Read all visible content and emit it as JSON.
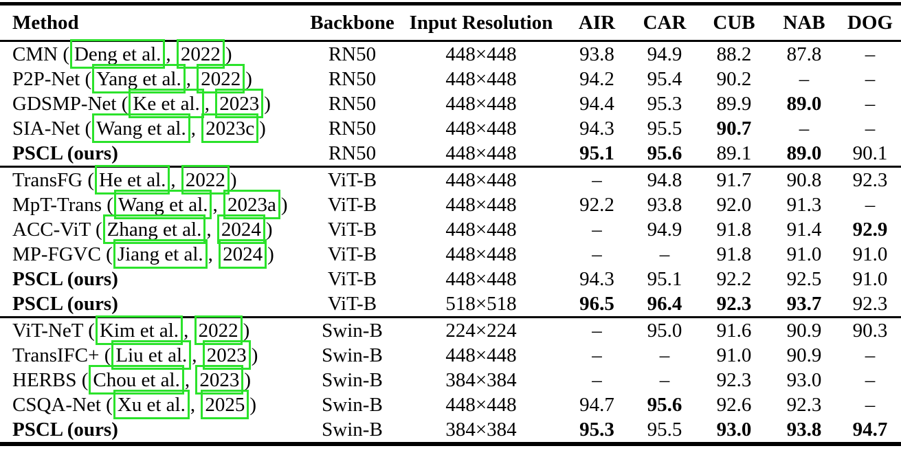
{
  "colors": {
    "citation_box": "#2be22b",
    "text": "#000000",
    "background": "#ffffff"
  },
  "table": {
    "columns": [
      "Method",
      "Backbone",
      "Input Resolution",
      "AIR",
      "CAR",
      "CUB",
      "NAB",
      "DOG"
    ],
    "groups": [
      {
        "rows": [
          {
            "method": {
              "bold": false,
              "parts": [
                {
                  "t": "CMN ("
                },
                {
                  "t": "Deng et al.",
                  "box": true
                },
                {
                  "t": ", "
                },
                {
                  "t": "2022",
                  "box": true
                },
                {
                  "t": ")"
                }
              ]
            },
            "backbone": "RN50",
            "resolution": "448×448",
            "scores": [
              {
                "v": "93.8",
                "b": false
              },
              {
                "v": "94.9",
                "b": false
              },
              {
                "v": "88.2",
                "b": false
              },
              {
                "v": "87.8",
                "b": false
              },
              {
                "v": "–",
                "b": false
              }
            ]
          },
          {
            "method": {
              "bold": false,
              "parts": [
                {
                  "t": "P2P-Net ("
                },
                {
                  "t": "Yang et al.",
                  "box": true
                },
                {
                  "t": ", "
                },
                {
                  "t": "2022",
                  "box": true
                },
                {
                  "t": ")"
                }
              ]
            },
            "backbone": "RN50",
            "resolution": "448×448",
            "scores": [
              {
                "v": "94.2",
                "b": false
              },
              {
                "v": "95.4",
                "b": false
              },
              {
                "v": "90.2",
                "b": false
              },
              {
                "v": "–",
                "b": false
              },
              {
                "v": "–",
                "b": false
              }
            ]
          },
          {
            "method": {
              "bold": false,
              "parts": [
                {
                  "t": "GDSMP-Net ("
                },
                {
                  "t": "Ke et al.",
                  "box": true
                },
                {
                  "t": ", "
                },
                {
                  "t": "2023",
                  "box": true
                },
                {
                  "t": ")"
                }
              ]
            },
            "backbone": "RN50",
            "resolution": "448×448",
            "scores": [
              {
                "v": "94.4",
                "b": false
              },
              {
                "v": "95.3",
                "b": false
              },
              {
                "v": "89.9",
                "b": false
              },
              {
                "v": "89.0",
                "b": true
              },
              {
                "v": "–",
                "b": false
              }
            ]
          },
          {
            "method": {
              "bold": false,
              "parts": [
                {
                  "t": "SIA-Net ("
                },
                {
                  "t": "Wang et al.",
                  "box": true
                },
                {
                  "t": ", "
                },
                {
                  "t": "2023c",
                  "box": true
                },
                {
                  "t": ")"
                }
              ]
            },
            "backbone": "RN50",
            "resolution": "448×448",
            "scores": [
              {
                "v": "94.3",
                "b": false
              },
              {
                "v": "95.5",
                "b": false
              },
              {
                "v": "90.7",
                "b": true
              },
              {
                "v": "–",
                "b": false
              },
              {
                "v": "–",
                "b": false
              }
            ]
          },
          {
            "method": {
              "bold": true,
              "parts": [
                {
                  "t": "PSCL (ours)"
                }
              ]
            },
            "backbone": "RN50",
            "resolution": "448×448",
            "scores": [
              {
                "v": "95.1",
                "b": true
              },
              {
                "v": "95.6",
                "b": true
              },
              {
                "v": "89.1",
                "b": false
              },
              {
                "v": "89.0",
                "b": true
              },
              {
                "v": "90.1",
                "b": false
              }
            ]
          }
        ]
      },
      {
        "rows": [
          {
            "method": {
              "bold": false,
              "parts": [
                {
                  "t": "TransFG ("
                },
                {
                  "t": "He et al.",
                  "box": true
                },
                {
                  "t": ", "
                },
                {
                  "t": "2022",
                  "box": true
                },
                {
                  "t": ")"
                }
              ]
            },
            "backbone": "ViT-B",
            "resolution": "448×448",
            "scores": [
              {
                "v": "–",
                "b": false
              },
              {
                "v": "94.8",
                "b": false
              },
              {
                "v": "91.7",
                "b": false
              },
              {
                "v": "90.8",
                "b": false
              },
              {
                "v": "92.3",
                "b": false
              }
            ]
          },
          {
            "method": {
              "bold": false,
              "parts": [
                {
                  "t": "MpT-Trans ("
                },
                {
                  "t": "Wang et al.",
                  "box": true
                },
                {
                  "t": ", "
                },
                {
                  "t": "2023a",
                  "box": true
                },
                {
                  "t": ")"
                }
              ]
            },
            "backbone": "ViT-B",
            "resolution": "448×448",
            "scores": [
              {
                "v": "92.2",
                "b": false
              },
              {
                "v": "93.8",
                "b": false
              },
              {
                "v": "92.0",
                "b": false
              },
              {
                "v": "91.3",
                "b": false
              },
              {
                "v": "–",
                "b": false
              }
            ]
          },
          {
            "method": {
              "bold": false,
              "parts": [
                {
                  "t": "ACC-ViT ("
                },
                {
                  "t": "Zhang et al.",
                  "box": true
                },
                {
                  "t": ", "
                },
                {
                  "t": "2024",
                  "box": true
                },
                {
                  "t": ")"
                }
              ]
            },
            "backbone": "ViT-B",
            "resolution": "448×448",
            "scores": [
              {
                "v": "–",
                "b": false
              },
              {
                "v": "94.9",
                "b": false
              },
              {
                "v": "91.8",
                "b": false
              },
              {
                "v": "91.4",
                "b": false
              },
              {
                "v": "92.9",
                "b": true
              }
            ]
          },
          {
            "method": {
              "bold": false,
              "parts": [
                {
                  "t": "MP-FGVC ("
                },
                {
                  "t": "Jiang et al.",
                  "box": true
                },
                {
                  "t": ", "
                },
                {
                  "t": "2024",
                  "box": true
                },
                {
                  "t": ")"
                }
              ]
            },
            "backbone": "ViT-B",
            "resolution": "448×448",
            "scores": [
              {
                "v": "–",
                "b": false
              },
              {
                "v": "–",
                "b": false
              },
              {
                "v": "91.8",
                "b": false
              },
              {
                "v": "91.0",
                "b": false
              },
              {
                "v": "91.0",
                "b": false
              }
            ]
          },
          {
            "method": {
              "bold": true,
              "parts": [
                {
                  "t": "PSCL (ours)"
                }
              ]
            },
            "backbone": "ViT-B",
            "resolution": "448×448",
            "scores": [
              {
                "v": "94.3",
                "b": false
              },
              {
                "v": "95.1",
                "b": false
              },
              {
                "v": "92.2",
                "b": false
              },
              {
                "v": "92.5",
                "b": false
              },
              {
                "v": "91.0",
                "b": false
              }
            ]
          },
          {
            "method": {
              "bold": true,
              "parts": [
                {
                  "t": "PSCL (ours)"
                }
              ]
            },
            "backbone": "ViT-B",
            "resolution": "518×518",
            "scores": [
              {
                "v": "96.5",
                "b": true
              },
              {
                "v": "96.4",
                "b": true
              },
              {
                "v": "92.3",
                "b": true
              },
              {
                "v": "93.7",
                "b": true
              },
              {
                "v": "92.3",
                "b": false
              }
            ]
          }
        ]
      },
      {
        "rows": [
          {
            "method": {
              "bold": false,
              "parts": [
                {
                  "t": "ViT-NeT ("
                },
                {
                  "t": "Kim et al.",
                  "box": true
                },
                {
                  "t": ", "
                },
                {
                  "t": "2022",
                  "box": true
                },
                {
                  "t": ")"
                }
              ]
            },
            "backbone": "Swin-B",
            "resolution": "224×224",
            "scores": [
              {
                "v": "–",
                "b": false
              },
              {
                "v": "95.0",
                "b": false
              },
              {
                "v": "91.6",
                "b": false
              },
              {
                "v": "90.9",
                "b": false
              },
              {
                "v": "90.3",
                "b": false
              }
            ]
          },
          {
            "method": {
              "bold": false,
              "parts": [
                {
                  "t": "TransIFC+ ("
                },
                {
                  "t": "Liu et al.",
                  "box": true
                },
                {
                  "t": ", "
                },
                {
                  "t": "2023",
                  "box": true
                },
                {
                  "t": ")"
                }
              ]
            },
            "backbone": "Swin-B",
            "resolution": "448×448",
            "scores": [
              {
                "v": "–",
                "b": false
              },
              {
                "v": "–",
                "b": false
              },
              {
                "v": "91.0",
                "b": false
              },
              {
                "v": "90.9",
                "b": false
              },
              {
                "v": "–",
                "b": false
              }
            ]
          },
          {
            "method": {
              "bold": false,
              "parts": [
                {
                  "t": "HERBS ("
                },
                {
                  "t": "Chou et al.",
                  "box": true
                },
                {
                  "t": ", "
                },
                {
                  "t": "2023",
                  "box": true
                },
                {
                  "t": ")"
                }
              ]
            },
            "backbone": "Swin-B",
            "resolution": "384×384",
            "scores": [
              {
                "v": "–",
                "b": false
              },
              {
                "v": "–",
                "b": false
              },
              {
                "v": "92.3",
                "b": false
              },
              {
                "v": "93.0",
                "b": false
              },
              {
                "v": "–",
                "b": false
              }
            ]
          },
          {
            "method": {
              "bold": false,
              "parts": [
                {
                  "t": "CSQA-Net ("
                },
                {
                  "t": "Xu et al.",
                  "box": true
                },
                {
                  "t": ", "
                },
                {
                  "t": "2025",
                  "box": true
                },
                {
                  "t": ")"
                }
              ]
            },
            "backbone": "Swin-B",
            "resolution": "448×448",
            "scores": [
              {
                "v": "94.7",
                "b": false
              },
              {
                "v": "95.6",
                "b": true
              },
              {
                "v": "92.6",
                "b": false
              },
              {
                "v": "92.3",
                "b": false
              },
              {
                "v": "–",
                "b": false
              }
            ]
          },
          {
            "method": {
              "bold": true,
              "parts": [
                {
                  "t": "PSCL (ours)"
                }
              ]
            },
            "backbone": "Swin-B",
            "resolution": "384×384",
            "scores": [
              {
                "v": "95.3",
                "b": true
              },
              {
                "v": "95.5",
                "b": false
              },
              {
                "v": "93.0",
                "b": true
              },
              {
                "v": "93.8",
                "b": true
              },
              {
                "v": "94.7",
                "b": true
              }
            ]
          }
        ]
      }
    ]
  }
}
